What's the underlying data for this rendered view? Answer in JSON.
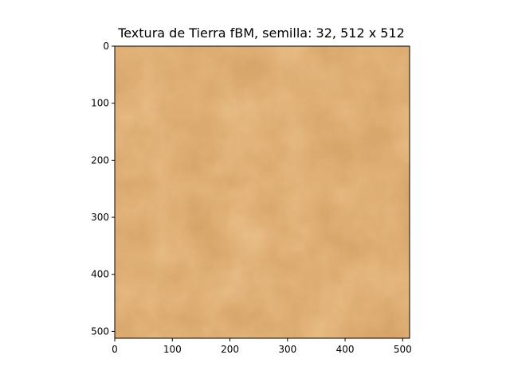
{
  "chart_data": {
    "type": "heatmap",
    "title": "Textura de Tierra fBM, semilla: 32, 512 x 512",
    "xlabel": "",
    "ylabel": "",
    "xlim": [
      0,
      512
    ],
    "ylim": [
      512,
      0
    ],
    "xticks": [
      0,
      100,
      200,
      300,
      400,
      500
    ],
    "yticks": [
      0,
      100,
      200,
      300,
      400,
      500
    ],
    "grid": false,
    "image": {
      "width": 512,
      "height": 512,
      "seed": 32,
      "noise": "fBM",
      "colors": {
        "dark": "#a85a20",
        "mid": "#bd6e2e",
        "light": "#cf8842"
      }
    }
  }
}
